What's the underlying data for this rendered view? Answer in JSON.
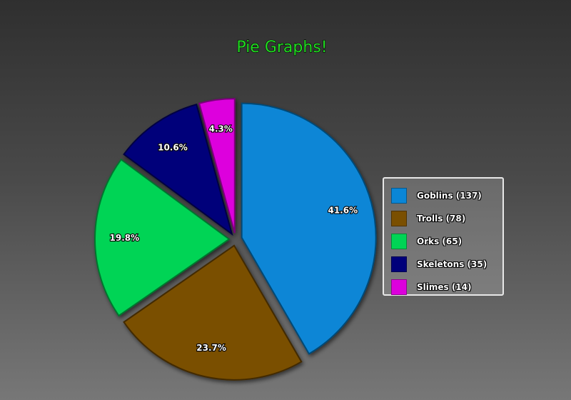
{
  "chart_data": {
    "type": "pie",
    "title": "Pie Graphs!",
    "categories": [
      "Goblins",
      "Trolls",
      "Orks",
      "Skeletons",
      "Slimes"
    ],
    "values": [
      137,
      78,
      65,
      35,
      14
    ],
    "percent_labels": [
      "41.6%",
      "23.7%",
      "19.8%",
      "10.6%",
      "4.3%"
    ],
    "colors": [
      "#0a86d6",
      "#7a4f00",
      "#00d455",
      "#00007a",
      "#dd00dd"
    ],
    "legend": {
      "placement": "right",
      "entries": [
        "Goblins (137)",
        "Trolls (78)",
        "Orks (65)",
        "Skeletons (35)",
        "Slimes (14)"
      ]
    },
    "exploded": true
  }
}
